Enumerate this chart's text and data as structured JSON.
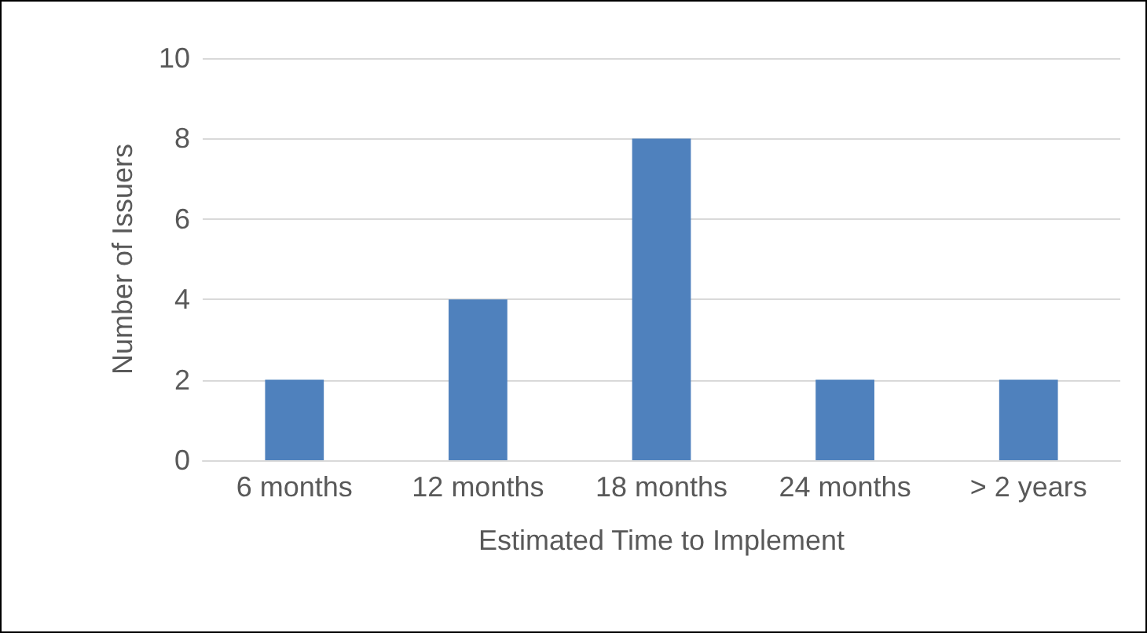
{
  "chart_data": {
    "type": "bar",
    "xlabel": "Estimated Time to Implement",
    "ylabel": "Number of Issuers",
    "categories": [
      "6 months",
      "12 months",
      "18 months",
      "24 months",
      "> 2 years"
    ],
    "values": [
      2,
      4,
      8,
      2,
      2
    ],
    "color": "#4f81bd",
    "ylim": [
      0,
      10
    ],
    "yticks": [
      0,
      2,
      4,
      6,
      8,
      10
    ],
    "grid": "y"
  }
}
